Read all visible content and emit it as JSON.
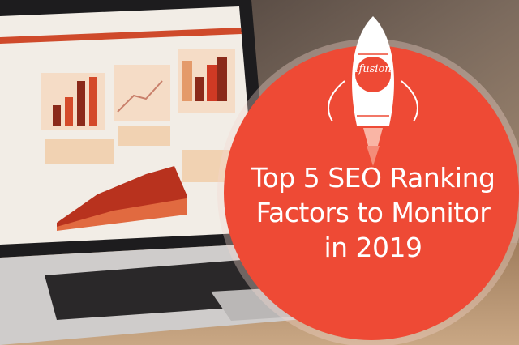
{
  "headline": {
    "lines": [
      "Top 5 SEO Ranking",
      "Factors to Monitor",
      "in 2019"
    ]
  },
  "logo": {
    "text": "Ifusion"
  },
  "colors": {
    "accent": "#ee4a35",
    "ring": "#f3d6cf",
    "background": "#6b5a4e"
  }
}
